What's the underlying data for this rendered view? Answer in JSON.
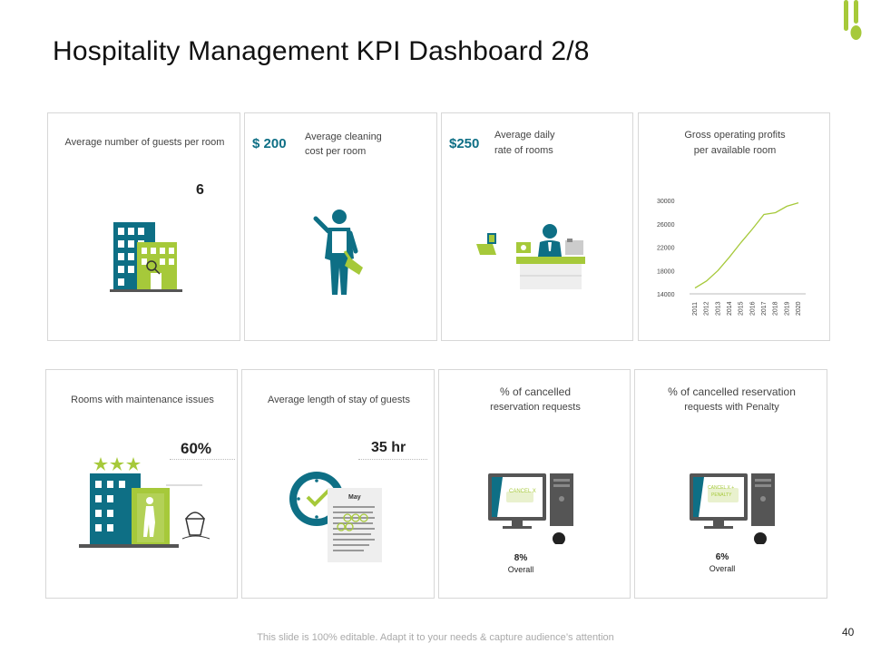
{
  "title": "Hospitality Management KPI Dashboard 2/8",
  "colors": {
    "teal": "#0e6f85",
    "green": "#a6c93a",
    "gray": "#555555"
  },
  "cards": {
    "guests": {
      "label": "Average number of guests per room",
      "value": "6"
    },
    "cleaning": {
      "value": "$ 200",
      "label_line1": "Average cleaning",
      "label_line2": "cost per room"
    },
    "daily_rate": {
      "value": "$250",
      "label_line1": "Average daily",
      "label_line2": "rate of rooms"
    },
    "gop": {
      "label_line1": "Gross operating profits",
      "label_line2": "per available room"
    },
    "maintenance": {
      "label": "Rooms with maintenance issues",
      "value": "60%"
    },
    "stay": {
      "label": "Average length of stay of guests",
      "value": "35 hr",
      "calendar_month": "May"
    },
    "cancelled": {
      "label_line1": "% of cancelled",
      "label_line2": "reservation requests",
      "screen_text": "CANCEL X",
      "value": "8%",
      "sub": "Overall"
    },
    "penalty": {
      "label_line1": "% of cancelled reservation",
      "label_line2": "requests with Penalty",
      "screen_text_line1": "CANCEL X +",
      "screen_text_line2": "PENALTY",
      "value": "6%",
      "sub": "Overall"
    }
  },
  "chart_data": {
    "type": "line",
    "title": "Gross operating profits per available room",
    "x": [
      "2011",
      "2012",
      "2013",
      "2014",
      "2015",
      "2016",
      "2017",
      "2018",
      "2019",
      "2020"
    ],
    "values": [
      15000,
      16200,
      18000,
      20300,
      22800,
      25100,
      27600,
      27900,
      29000,
      29600
    ],
    "ylim": [
      14000,
      30000
    ],
    "yticks": [
      "14000",
      "18000",
      "22000",
      "26000",
      "30000"
    ],
    "xlabel": "",
    "ylabel": ""
  },
  "footer": "This slide is 100% editable. Adapt it to your needs & capture audience’s attention",
  "page_number": "40"
}
